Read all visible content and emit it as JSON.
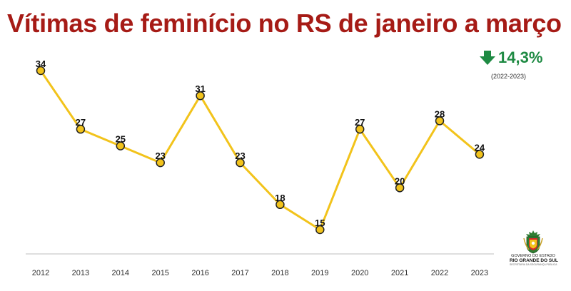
{
  "title": "Vítimas de feminício no RS de janeiro a março",
  "variation": {
    "direction": "down",
    "icon": "arrow-down-icon",
    "value": "14,3%",
    "period": "(2022-2023)",
    "color": "#1e8a43"
  },
  "logo": {
    "line1": "GOVERNO DO ESTADO",
    "line2": "RIO GRANDE DO SUL",
    "line3": "SECRETARIA DA SEGURANÇA PÚBLICA"
  },
  "colors": {
    "title": "#a61b16",
    "line": "#f2c31b",
    "marker_fill": "#f2c31b",
    "marker_stroke": "#222222"
  },
  "chart_data": {
    "type": "line",
    "title": "Vítimas de feminício no RS de janeiro a março",
    "xlabel": "",
    "ylabel": "",
    "x": [
      "2012",
      "2013",
      "2014",
      "2015",
      "2016",
      "2017",
      "2018",
      "2019",
      "2020",
      "2021",
      "2022",
      "2023"
    ],
    "series": [
      {
        "values": [
          34,
          27,
          25,
          23,
          31,
          23,
          18,
          15,
          27,
          20,
          28,
          24
        ]
      }
    ],
    "data_labels": true,
    "grid": false,
    "y_axis_visible": false
  }
}
